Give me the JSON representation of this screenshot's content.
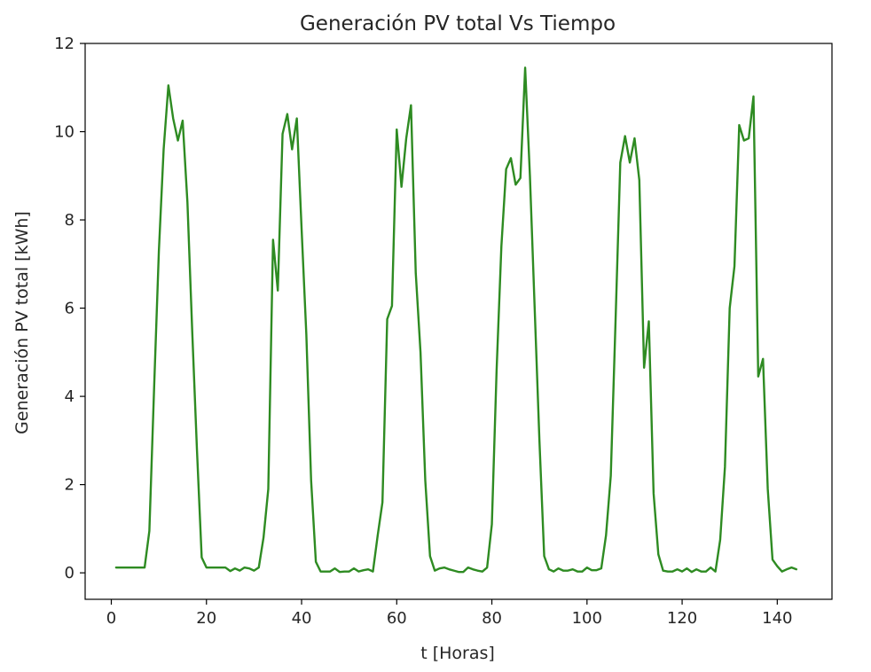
{
  "chart_data": {
    "type": "line",
    "title": "Generación PV total Vs Tiempo",
    "xlabel": "t [Horas]",
    "ylabel": "Generación PV total [kWh]",
    "xlim": [
      -5.5,
      151.5
    ],
    "ylim": [
      -0.6,
      12
    ],
    "xticks": [
      0,
      20,
      40,
      60,
      80,
      100,
      120,
      140
    ],
    "yticks": [
      0,
      2,
      4,
      6,
      8,
      10,
      12
    ],
    "grid": false,
    "legend": "none",
    "series": [
      {
        "color": "#2e8b22",
        "x": [
          1,
          2,
          3,
          4,
          5,
          6,
          7,
          8,
          9,
          10,
          11,
          12,
          13,
          14,
          15,
          16,
          17,
          18,
          19,
          20,
          21,
          22,
          23,
          24,
          25,
          26,
          27,
          28,
          29,
          30,
          31,
          32,
          33,
          34,
          35,
          36,
          37,
          38,
          39,
          40,
          41,
          42,
          43,
          44,
          45,
          46,
          47,
          48,
          49,
          50,
          51,
          52,
          53,
          54,
          55,
          56,
          57,
          58,
          59,
          60,
          61,
          62,
          63,
          64,
          65,
          66,
          67,
          68,
          69,
          70,
          71,
          72,
          73,
          74,
          75,
          76,
          77,
          78,
          79,
          80,
          81,
          82,
          83,
          84,
          85,
          86,
          87,
          88,
          89,
          90,
          91,
          92,
          93,
          94,
          95,
          96,
          97,
          98,
          99,
          100,
          101,
          102,
          103,
          104,
          105,
          106,
          107,
          108,
          109,
          110,
          111,
          112,
          113,
          114,
          115,
          116,
          117,
          118,
          119,
          120,
          121,
          122,
          123,
          124,
          125,
          126,
          127,
          128,
          129,
          130,
          131,
          132,
          133,
          134,
          135,
          136,
          137,
          138,
          139,
          140,
          141,
          142,
          143,
          144
        ],
        "y": [
          0.12,
          0.12,
          0.12,
          0.12,
          0.12,
          0.12,
          0.12,
          0.95,
          4.2,
          7.3,
          9.6,
          11.05,
          10.3,
          9.8,
          10.25,
          8.4,
          5.5,
          2.8,
          0.35,
          0.12,
          0.12,
          0.12,
          0.12,
          0.12,
          0.04,
          0.1,
          0.05,
          0.12,
          0.1,
          0.05,
          0.12,
          0.8,
          1.9,
          7.55,
          6.4,
          9.95,
          10.4,
          9.6,
          10.3,
          7.8,
          5.4,
          2.1,
          0.25,
          0.03,
          0.03,
          0.03,
          0.1,
          0.02,
          0.03,
          0.03,
          0.1,
          0.03,
          0.06,
          0.08,
          0.03,
          0.85,
          1.6,
          5.75,
          6.05,
          10.05,
          8.75,
          9.85,
          10.6,
          6.8,
          5.0,
          2.1,
          0.38,
          0.05,
          0.1,
          0.12,
          0.08,
          0.05,
          0.02,
          0.02,
          0.12,
          0.08,
          0.05,
          0.03,
          0.12,
          1.1,
          4.6,
          7.4,
          9.15,
          9.4,
          8.8,
          8.95,
          11.45,
          9.0,
          6.0,
          3.0,
          0.38,
          0.08,
          0.03,
          0.1,
          0.05,
          0.05,
          0.08,
          0.03,
          0.03,
          0.12,
          0.06,
          0.06,
          0.1,
          0.85,
          2.2,
          5.7,
          9.3,
          9.9,
          9.3,
          9.85,
          8.9,
          4.65,
          5.7,
          1.8,
          0.42,
          0.05,
          0.03,
          0.03,
          0.08,
          0.03,
          0.1,
          0.02,
          0.08,
          0.03,
          0.03,
          0.12,
          0.03,
          0.75,
          2.4,
          6.0,
          6.95,
          10.15,
          9.8,
          9.85,
          10.8,
          4.45,
          4.85,
          1.9,
          0.3,
          0.15,
          0.03,
          0.08,
          0.12,
          0.08
        ]
      }
    ]
  }
}
